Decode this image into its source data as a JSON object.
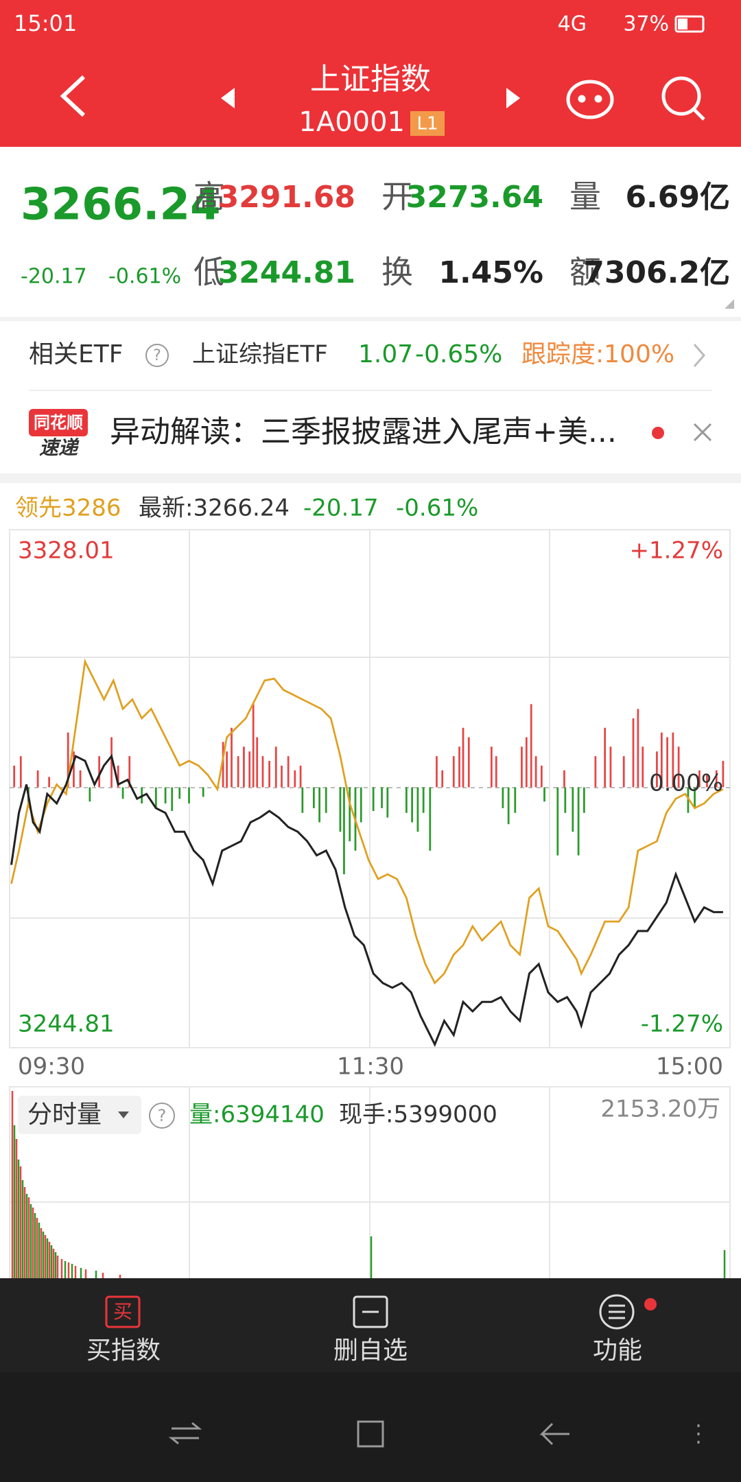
{
  "status": {
    "time": "15:01",
    "network": "4G",
    "battery": "37%"
  },
  "header": {
    "title": "上证指数",
    "code": "1A0001",
    "badge": "L1"
  },
  "quote": {
    "price": "3266.24",
    "change": "-20.17",
    "change_pct": "-0.61%",
    "fields": [
      {
        "label": "高",
        "value": "3291.68"
      },
      {
        "label": "开",
        "value": "3273.64"
      },
      {
        "label": "量",
        "value": "6.69亿"
      },
      {
        "label": "低",
        "value": "3244.81"
      },
      {
        "label": "换",
        "value": "1.45%"
      },
      {
        "label": "额",
        "value": "7306.2亿"
      }
    ]
  },
  "etf": {
    "label": "相关ETF",
    "name": "上证综指ETF",
    "price": "1.07",
    "pct": "-0.65%",
    "tracking": "跟踪度:100%"
  },
  "news": {
    "logo_top": "同花顺",
    "logo_bottom": "速递",
    "text": "异动解读：三季报披露进入尾声+美..."
  },
  "chart": {
    "lead": "领先3286",
    "latest": "最新:3266.24",
    "change": "-20.17",
    "pct": "-0.61%",
    "y_high": "3328.01",
    "y_low": "3244.81",
    "pct_high": "+1.27%",
    "pct_low": "-1.27%",
    "zero": "0.00%",
    "times": [
      "09:30",
      "11:30",
      "15:00"
    ]
  },
  "volume": {
    "selector": "分时量",
    "volume": "量:6394140",
    "current": "现手:5399000",
    "max": "2153.20万"
  },
  "bottom": {
    "buttons": [
      "买指数",
      "删自选",
      "功能"
    ],
    "buy_icon": "买"
  }
}
